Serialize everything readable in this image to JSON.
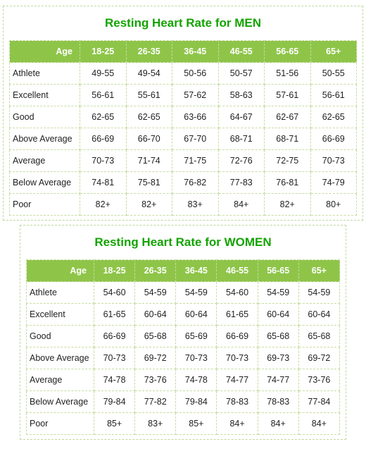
{
  "accent_color": "#13a300",
  "header_bg": "#8ec549",
  "header_fg": "#ffffff",
  "border_color": "#c7dca1",
  "age_label": "Age",
  "age_ranges": [
    "18-25",
    "26-35",
    "36-45",
    "46-55",
    "56-65",
    "65+"
  ],
  "row_labels": [
    "Athlete",
    "Excellent",
    "Good",
    "Above Average",
    "Average",
    "Below Average",
    "Poor"
  ],
  "men": {
    "title": "Resting Heart Rate for MEN",
    "data": [
      [
        "49-55",
        "49-54",
        "50-56",
        "50-57",
        "51-56",
        "50-55"
      ],
      [
        "56-61",
        "55-61",
        "57-62",
        "58-63",
        "57-61",
        "56-61"
      ],
      [
        "62-65",
        "62-65",
        "63-66",
        "64-67",
        "62-67",
        "62-65"
      ],
      [
        "66-69",
        "66-70",
        "67-70",
        "68-71",
        "68-71",
        "66-69"
      ],
      [
        "70-73",
        "71-74",
        "71-75",
        "72-76",
        "72-75",
        "70-73"
      ],
      [
        "74-81",
        "75-81",
        "76-82",
        "77-83",
        "76-81",
        "74-79"
      ],
      [
        "82+",
        "82+",
        "83+",
        "84+",
        "82+",
        "80+"
      ]
    ]
  },
  "women": {
    "title": "Resting Heart Rate for WOMEN",
    "data": [
      [
        "54-60",
        "54-59",
        "54-59",
        "54-60",
        "54-59",
        "54-59"
      ],
      [
        "61-65",
        "60-64",
        "60-64",
        "61-65",
        "60-64",
        "60-64"
      ],
      [
        "66-69",
        "65-68",
        "65-69",
        "66-69",
        "65-68",
        "65-68"
      ],
      [
        "70-73",
        "69-72",
        "70-73",
        "70-73",
        "69-73",
        "69-72"
      ],
      [
        "74-78",
        "73-76",
        "74-78",
        "74-77",
        "74-77",
        "73-76"
      ],
      [
        "79-84",
        "77-82",
        "79-84",
        "78-83",
        "78-83",
        "77-84"
      ],
      [
        "85+",
        "83+",
        "85+",
        "84+",
        "84+",
        "84+"
      ]
    ]
  }
}
